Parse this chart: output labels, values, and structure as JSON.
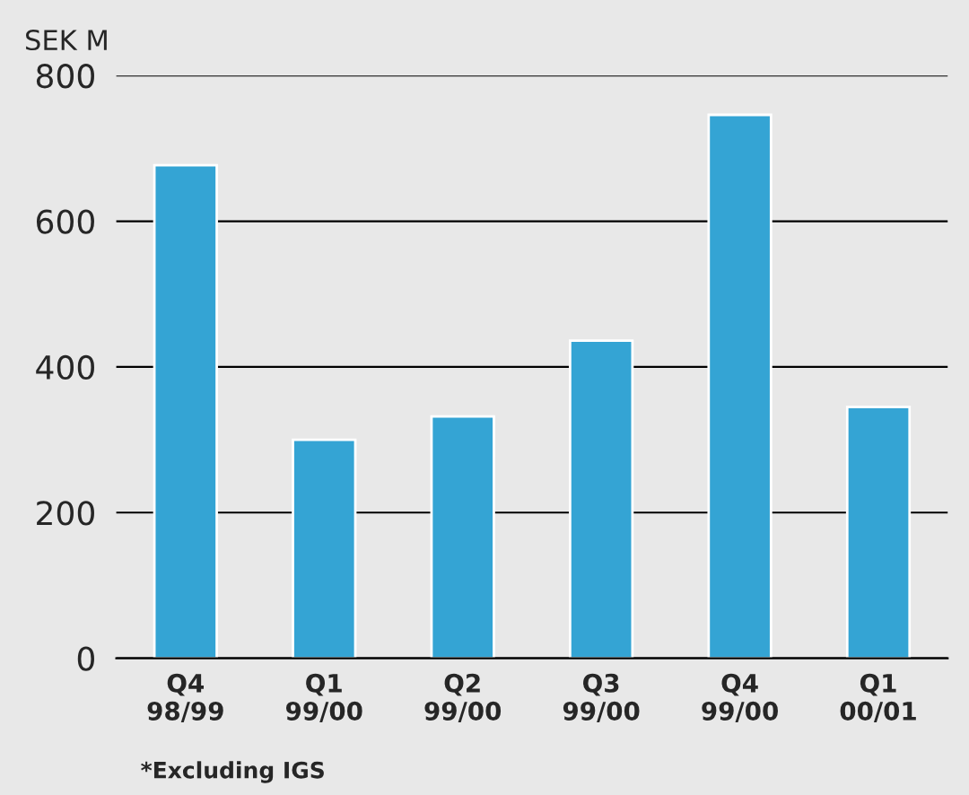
{
  "chart_data": {
    "type": "bar",
    "ylabel": "SEK M",
    "categories": [
      "Q4\n98/99",
      "Q1\n99/00",
      "Q2\n99/00",
      "Q3\n99/00",
      "Q4\n99/00",
      "Q1\n00/01"
    ],
    "values": [
      677,
      300,
      332,
      436,
      746,
      345
    ],
    "color": "#34a4d4",
    "ylim": [
      0,
      800
    ],
    "yticks": [
      0,
      200,
      400,
      600,
      800
    ],
    "grid": "y",
    "annotations": [
      "*Excluding IGS"
    ]
  }
}
